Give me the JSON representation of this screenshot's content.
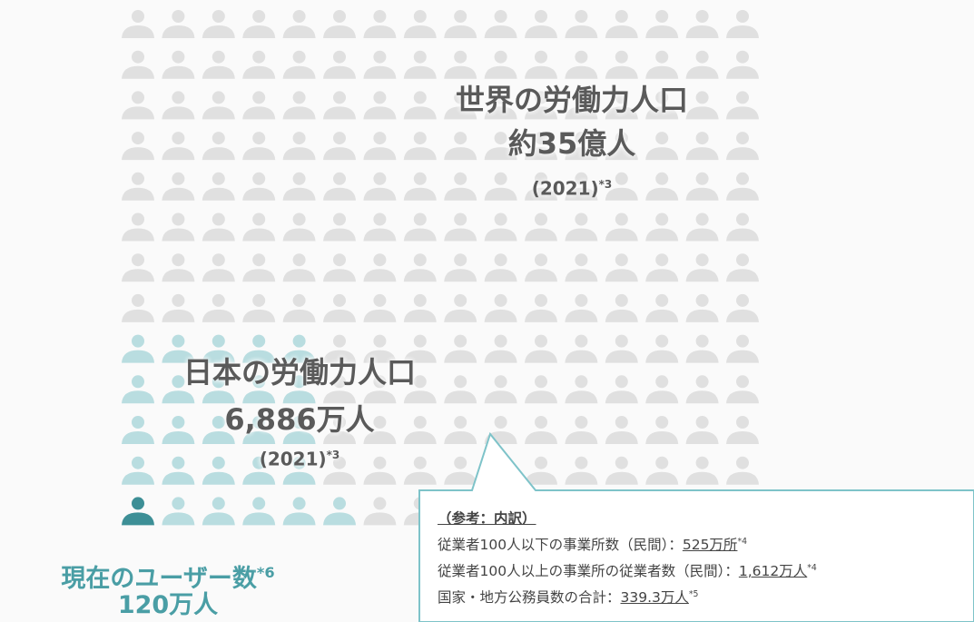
{
  "world": {
    "title": "世界の労働力人口",
    "value": "約35億人",
    "year": "(2021)",
    "note": "*3"
  },
  "japan": {
    "title": "日本の労働力人口",
    "value": "6,886万人",
    "year": "(2021)",
    "note": "*3"
  },
  "users": {
    "title": "現在のユーザー数",
    "note": "*6",
    "value": "120万人"
  },
  "breakdown": {
    "heading": "（参考：内訳）",
    "items": [
      {
        "label": "従業者100人以下の事業所数（民間）：",
        "value": "525万所",
        "note": "*4"
      },
      {
        "label": "従業者100人以上の事業所の従業者数（民間）：",
        "value": "1,612万人",
        "note": "*4"
      },
      {
        "label": "国家・地方公務員数の合計：",
        "value": "339.3万人",
        "note": "*5"
      }
    ]
  }
}
